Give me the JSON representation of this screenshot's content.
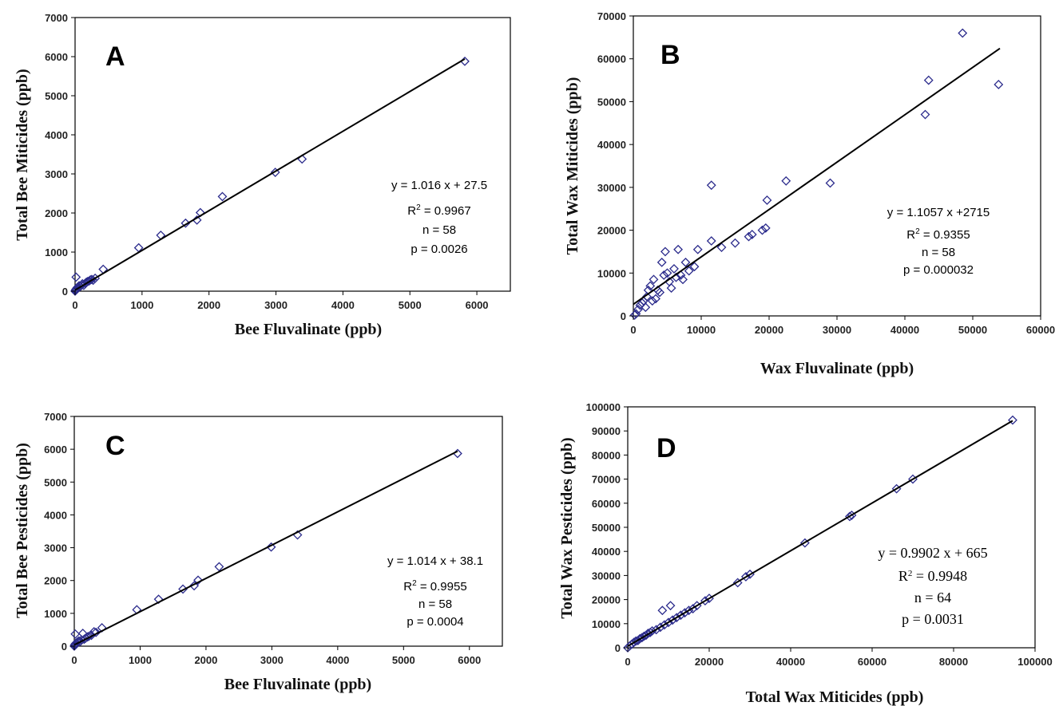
{
  "chart_data": [
    {
      "type": "scatter",
      "panel_label": "A",
      "xlabel": "Bee Fluvalinate (ppb)",
      "ylabel": "Total Bee Miticides (ppb)",
      "xlim": [
        0,
        6500
      ],
      "ylim": [
        0,
        7000
      ],
      "xticks": [
        "0",
        "1000",
        "2000",
        "3000",
        "4000",
        "5000",
        "6000"
      ],
      "yticks": [
        "0",
        "1000",
        "2000",
        "3000",
        "4000",
        "5000",
        "6000",
        "7000"
      ],
      "fit": {
        "slope": 1.016,
        "intercept": 27.5,
        "x_range": [
          0,
          5820
        ]
      },
      "annotations": [
        "y = 1.016 x + 27.5",
        "R",
        "2",
        " = 0.9967",
        "n = 58",
        "p = 0.0026"
      ],
      "points": [
        [
          0,
          0
        ],
        [
          5,
          20
        ],
        [
          10,
          40
        ],
        [
          20,
          60
        ],
        [
          15,
          360
        ],
        [
          30,
          90
        ],
        [
          45,
          110
        ],
        [
          60,
          140
        ],
        [
          80,
          120
        ],
        [
          100,
          160
        ],
        [
          110,
          190
        ],
        [
          130,
          150
        ],
        [
          150,
          200
        ],
        [
          170,
          230
        ],
        [
          190,
          250
        ],
        [
          210,
          260
        ],
        [
          230,
          290
        ],
        [
          250,
          300
        ],
        [
          270,
          280
        ],
        [
          300,
          330
        ],
        [
          420,
          560
        ],
        [
          950,
          1110
        ],
        [
          1280,
          1430
        ],
        [
          1650,
          1740
        ],
        [
          1820,
          1820
        ],
        [
          1870,
          2010
        ],
        [
          2200,
          2420
        ],
        [
          2990,
          3040
        ],
        [
          3390,
          3380
        ],
        [
          5820,
          5880
        ]
      ]
    },
    {
      "type": "scatter",
      "panel_label": "B",
      "xlabel": "Wax Fluvalinate (ppb)",
      "ylabel": "Total Wax Miticides (ppb)",
      "xlim": [
        0,
        60000
      ],
      "ylim": [
        0,
        70000
      ],
      "xticks": [
        "0",
        "10000",
        "20000",
        "30000",
        "40000",
        "50000",
        "60000"
      ],
      "yticks": [
        "0",
        "10000",
        "20000",
        "30000",
        "40000",
        "50000",
        "60000",
        "70000"
      ],
      "fit": {
        "slope": 1.1057,
        "intercept": 2715,
        "x_range": [
          0,
          54000
        ]
      },
      "annotations": [
        "y = 1.1057 x +2715",
        "R",
        "2",
        " = 0.9355",
        "n = 58",
        "p = 0.000032"
      ],
      "points": [
        [
          200,
          200
        ],
        [
          400,
          500
        ],
        [
          700,
          1500
        ],
        [
          1000,
          2500
        ],
        [
          1300,
          3000
        ],
        [
          1500,
          3500
        ],
        [
          1800,
          2000
        ],
        [
          2000,
          4500
        ],
        [
          2200,
          6000
        ],
        [
          2500,
          7000
        ],
        [
          2800,
          3500
        ],
        [
          3000,
          8500
        ],
        [
          3300,
          4000
        ],
        [
          3600,
          6000
        ],
        [
          3900,
          5500
        ],
        [
          4200,
          12500
        ],
        [
          4500,
          9500
        ],
        [
          4700,
          15000
        ],
        [
          5000,
          10000
        ],
        [
          5300,
          8000
        ],
        [
          5600,
          6500
        ],
        [
          6000,
          11000
        ],
        [
          6300,
          9000
        ],
        [
          6600,
          15500
        ],
        [
          7000,
          9500
        ],
        [
          7300,
          8500
        ],
        [
          7700,
          12500
        ],
        [
          8200,
          10500
        ],
        [
          9000,
          11500
        ],
        [
          9500,
          15500
        ],
        [
          11500,
          30500
        ],
        [
          11500,
          17500
        ],
        [
          13000,
          16000
        ],
        [
          15000,
          17000
        ],
        [
          17000,
          18500
        ],
        [
          17500,
          19000
        ],
        [
          19000,
          20000
        ],
        [
          19500,
          20500
        ],
        [
          19700,
          27000
        ],
        [
          22500,
          31500
        ],
        [
          29000,
          31000
        ],
        [
          43000,
          47000
        ],
        [
          43500,
          55000
        ],
        [
          48500,
          66000
        ],
        [
          53800,
          54000
        ]
      ]
    },
    {
      "type": "scatter",
      "panel_label": "C",
      "xlabel": "Bee Fluvalinate (ppb)",
      "ylabel": "Total Bee Pesticides (ppb)",
      "xlim": [
        0,
        6500
      ],
      "ylim": [
        0,
        7000
      ],
      "xticks": [
        "0",
        "1000",
        "2000",
        "3000",
        "4000",
        "5000",
        "6000"
      ],
      "yticks": [
        "0",
        "1000",
        "2000",
        "3000",
        "4000",
        "5000",
        "6000",
        "7000"
      ],
      "fit": {
        "slope": 1.014,
        "intercept": 38.1,
        "x_range": [
          0,
          5820
        ]
      },
      "annotations": [
        "y = 1.014 x + 38.1",
        "R",
        "2",
        " = 0.9955",
        "n = 58",
        "p = 0.0004"
      ],
      "points": [
        [
          0,
          0
        ],
        [
          5,
          30
        ],
        [
          10,
          50
        ],
        [
          20,
          80
        ],
        [
          15,
          370
        ],
        [
          35,
          100
        ],
        [
          50,
          130
        ],
        [
          70,
          160
        ],
        [
          90,
          140
        ],
        [
          110,
          190
        ],
        [
          130,
          390
        ],
        [
          150,
          210
        ],
        [
          170,
          240
        ],
        [
          200,
          280
        ],
        [
          220,
          300
        ],
        [
          260,
          330
        ],
        [
          300,
          440
        ],
        [
          330,
          420
        ],
        [
          420,
          560
        ],
        [
          950,
          1110
        ],
        [
          1280,
          1430
        ],
        [
          1650,
          1740
        ],
        [
          1820,
          1840
        ],
        [
          1880,
          2010
        ],
        [
          2200,
          2420
        ],
        [
          2990,
          3020
        ],
        [
          3390,
          3390
        ],
        [
          5820,
          5870
        ]
      ]
    },
    {
      "type": "scatter",
      "panel_label": "D",
      "xlabel": "Total Wax Miticides (ppb)",
      "ylabel": "Total Wax Pesticides (ppb)",
      "xlim": [
        0,
        100000
      ],
      "ylim": [
        0,
        100000
      ],
      "xticks": [
        "0",
        "20000",
        "40000",
        "60000",
        "80000",
        "100000"
      ],
      "yticks": [
        "0",
        "10000",
        "20000",
        "30000",
        "40000",
        "50000",
        "60000",
        "70000",
        "80000",
        "90000",
        "100000"
      ],
      "fit": {
        "slope": 0.9902,
        "intercept": 665,
        "x_range": [
          0,
          94500
        ]
      },
      "annotations": [
        "y = 0.9902 x + 665",
        "R",
        "2",
        " = 0.9948",
        "n = 64",
        "p = 0.0031"
      ],
      "points": [
        [
          0,
          0
        ],
        [
          500,
          800
        ],
        [
          1000,
          1500
        ],
        [
          1500,
          2200
        ],
        [
          2000,
          2800
        ],
        [
          2500,
          3000
        ],
        [
          3000,
          3800
        ],
        [
          3500,
          4200
        ],
        [
          4000,
          4800
        ],
        [
          4500,
          5200
        ],
        [
          5000,
          6000
        ],
        [
          5500,
          6300
        ],
        [
          6000,
          7000
        ],
        [
          7000,
          7500
        ],
        [
          8000,
          8500
        ],
        [
          8500,
          15500
        ],
        [
          9000,
          9500
        ],
        [
          10000,
          10500
        ],
        [
          10500,
          17500
        ],
        [
          11000,
          11500
        ],
        [
          12000,
          12500
        ],
        [
          13000,
          13500
        ],
        [
          14000,
          14500
        ],
        [
          15000,
          15500
        ],
        [
          16000,
          16200
        ],
        [
          17000,
          17500
        ],
        [
          19000,
          19500
        ],
        [
          20000,
          20500
        ],
        [
          27000,
          27000
        ],
        [
          29000,
          29500
        ],
        [
          30000,
          30500
        ],
        [
          43500,
          43500
        ],
        [
          54500,
          54500
        ],
        [
          55000,
          55000
        ],
        [
          66000,
          66000
        ],
        [
          70000,
          70000
        ],
        [
          94500,
          94500
        ]
      ]
    }
  ]
}
